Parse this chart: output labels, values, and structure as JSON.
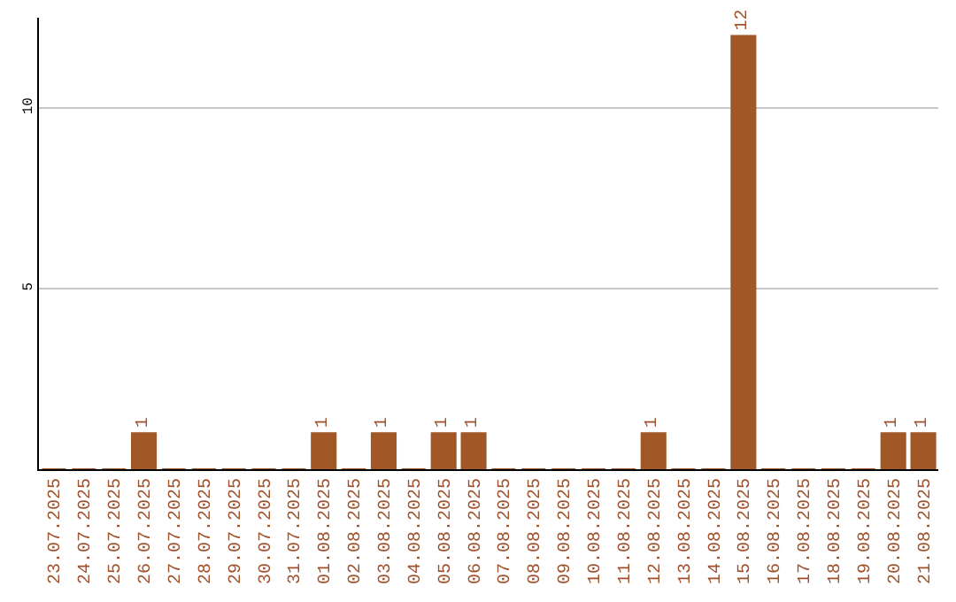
{
  "chart_data": {
    "type": "bar",
    "categories": [
      "23.07.2025",
      "24.07.2025",
      "25.07.2025",
      "26.07.2025",
      "27.07.2025",
      "28.07.2025",
      "29.07.2025",
      "30.07.2025",
      "31.07.2025",
      "01.08.2025",
      "02.08.2025",
      "03.08.2025",
      "04.08.2025",
      "05.08.2025",
      "06.08.2025",
      "07.08.2025",
      "08.08.2025",
      "09.08.2025",
      "10.08.2025",
      "11.08.2025",
      "12.08.2025",
      "13.08.2025",
      "14.08.2025",
      "15.08.2025",
      "16.08.2025",
      "17.08.2025",
      "18.08.2025",
      "19.08.2025",
      "20.08.2025",
      "21.08.2025"
    ],
    "values": [
      0,
      0,
      0,
      1,
      0,
      0,
      0,
      0,
      0,
      1,
      0,
      1,
      0,
      1,
      1,
      0,
      0,
      0,
      0,
      0,
      1,
      0,
      0,
      12,
      0,
      0,
      0,
      0,
      1,
      1
    ],
    "value_labels": [
      null,
      null,
      null,
      "1",
      null,
      null,
      null,
      null,
      null,
      "1",
      null,
      "1",
      null,
      "1",
      "1",
      null,
      null,
      null,
      null,
      null,
      "1",
      null,
      null,
      "12",
      null,
      null,
      null,
      null,
      "1",
      "1"
    ],
    "color": "#a25727",
    "ylim": [
      0,
      12.5
    ],
    "yticks": [
      5,
      10
    ],
    "grid": "y"
  }
}
